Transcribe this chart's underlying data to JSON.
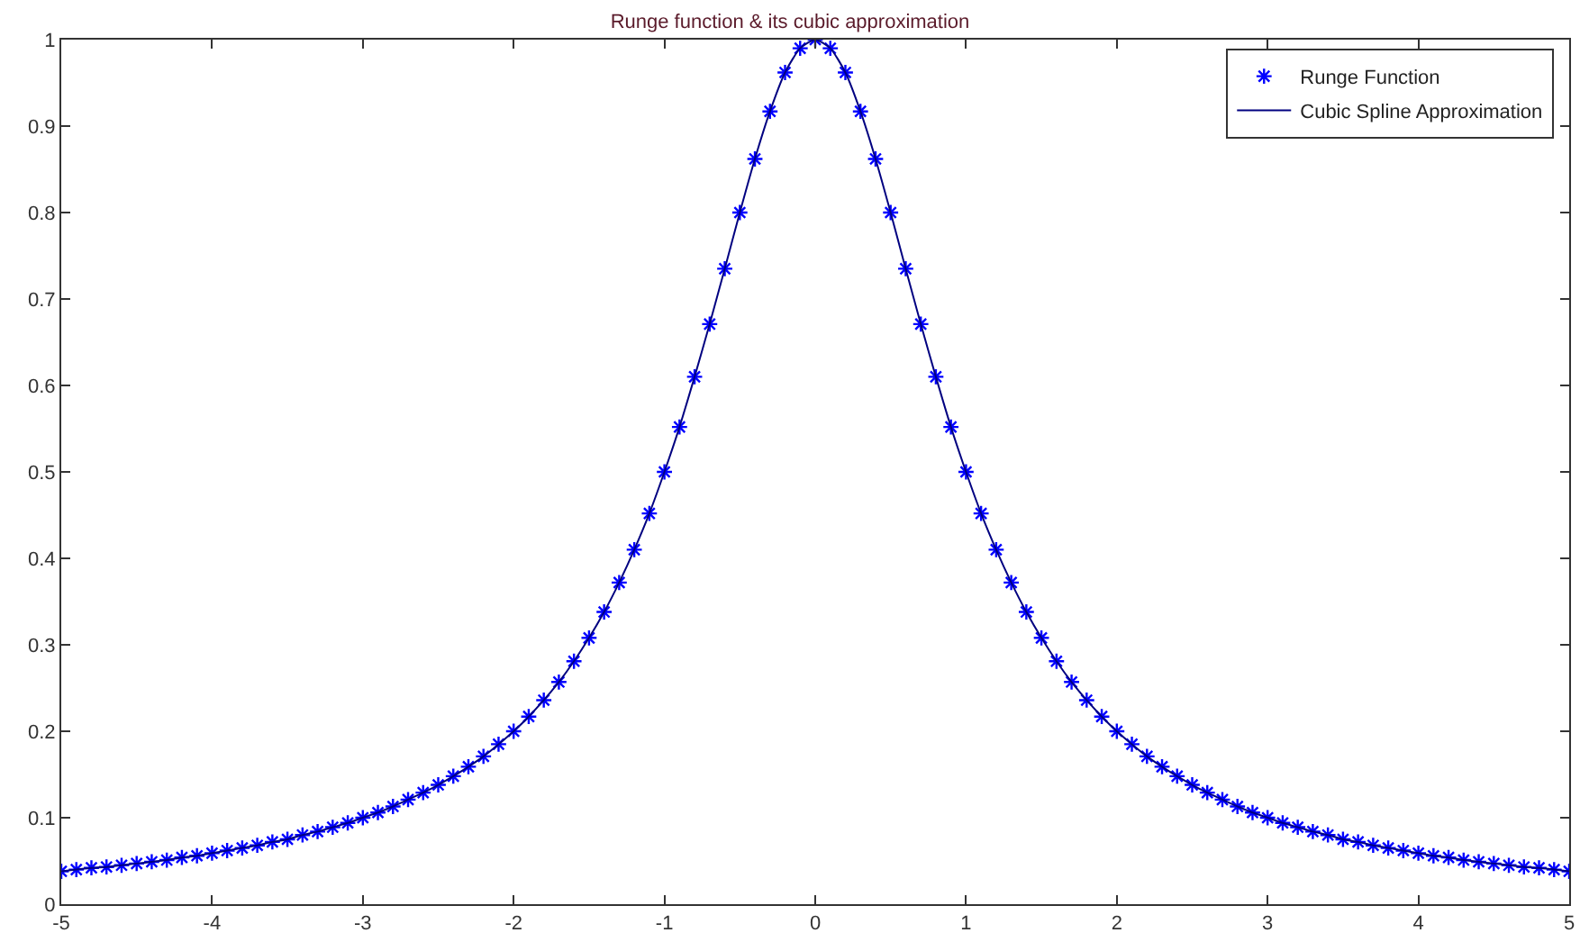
{
  "chart_data": {
    "type": "line",
    "title": "Runge function & its cubic approximation",
    "x": [
      -5,
      -4.9,
      -4.8,
      -4.7,
      -4.6,
      -4.5,
      -4.4,
      -4.3,
      -4.2,
      -4.1,
      -4,
      -3.9,
      -3.8,
      -3.7,
      -3.6,
      -3.5,
      -3.4,
      -3.3,
      -3.2,
      -3.1,
      -3,
      -2.9,
      -2.8,
      -2.7,
      -2.6,
      -2.5,
      -2.4,
      -2.3,
      -2.2,
      -2.1,
      -2,
      -1.9,
      -1.8,
      -1.7,
      -1.6,
      -1.5,
      -1.4,
      -1.3,
      -1.2,
      -1.1,
      -1,
      -0.9,
      -0.8,
      -0.7,
      -0.6,
      -0.5,
      -0.4,
      -0.3,
      -0.2,
      -0.1,
      0,
      0.1,
      0.2,
      0.3,
      0.4,
      0.5,
      0.6,
      0.7,
      0.8,
      0.9,
      1,
      1.1,
      1.2,
      1.3,
      1.4,
      1.5,
      1.6,
      1.7,
      1.8,
      1.9,
      2,
      2.1,
      2.2,
      2.3,
      2.4,
      2.5,
      2.6,
      2.7,
      2.8,
      2.9,
      3,
      3.1,
      3.2,
      3.3,
      3.4,
      3.5,
      3.6,
      3.7,
      3.8,
      3.9,
      4,
      4.1,
      4.2,
      4.3,
      4.4,
      4.5,
      4.6,
      4.7,
      4.8,
      4.9,
      5
    ],
    "series": [
      {
        "name": "Runge Function",
        "type": "scatter",
        "marker": "cross",
        "color": "#0000ff",
        "values": [
          0.038,
          0.04,
          0.042,
          0.043,
          0.045,
          0.047,
          0.049,
          0.051,
          0.054,
          0.056,
          0.059,
          0.062,
          0.065,
          0.068,
          0.072,
          0.075,
          0.08,
          0.084,
          0.089,
          0.094,
          0.1,
          0.106,
          0.113,
          0.121,
          0.129,
          0.138,
          0.148,
          0.159,
          0.171,
          0.185,
          0.2,
          0.217,
          0.236,
          0.257,
          0.281,
          0.308,
          0.338,
          0.372,
          0.41,
          0.452,
          0.5,
          0.552,
          0.61,
          0.671,
          0.735,
          0.8,
          0.862,
          0.917,
          0.962,
          0.99,
          1,
          0.99,
          0.962,
          0.917,
          0.862,
          0.8,
          0.735,
          0.671,
          0.61,
          0.552,
          0.5,
          0.452,
          0.41,
          0.372,
          0.338,
          0.308,
          0.281,
          0.257,
          0.236,
          0.217,
          0.2,
          0.185,
          0.171,
          0.159,
          0.148,
          0.138,
          0.129,
          0.121,
          0.113,
          0.106,
          0.1,
          0.094,
          0.089,
          0.084,
          0.08,
          0.075,
          0.072,
          0.068,
          0.065,
          0.062,
          0.059,
          0.056,
          0.054,
          0.051,
          0.049,
          0.047,
          0.045,
          0.043,
          0.042,
          0.04,
          0.038
        ]
      },
      {
        "name": "Cubic Spline Approximation",
        "line_style": "solid",
        "color": "#000080",
        "values": [
          0.038,
          0.04,
          0.042,
          0.043,
          0.045,
          0.047,
          0.049,
          0.051,
          0.054,
          0.056,
          0.059,
          0.062,
          0.065,
          0.068,
          0.072,
          0.075,
          0.08,
          0.084,
          0.089,
          0.094,
          0.1,
          0.106,
          0.113,
          0.121,
          0.129,
          0.138,
          0.148,
          0.159,
          0.171,
          0.185,
          0.2,
          0.217,
          0.236,
          0.257,
          0.281,
          0.308,
          0.338,
          0.372,
          0.41,
          0.452,
          0.5,
          0.552,
          0.61,
          0.671,
          0.735,
          0.8,
          0.862,
          0.917,
          0.962,
          0.99,
          1,
          0.99,
          0.962,
          0.917,
          0.862,
          0.8,
          0.735,
          0.671,
          0.61,
          0.552,
          0.5,
          0.452,
          0.41,
          0.372,
          0.338,
          0.308,
          0.281,
          0.257,
          0.236,
          0.217,
          0.2,
          0.185,
          0.171,
          0.159,
          0.148,
          0.138,
          0.129,
          0.121,
          0.113,
          0.106,
          0.1,
          0.094,
          0.089,
          0.084,
          0.08,
          0.075,
          0.072,
          0.068,
          0.065,
          0.062,
          0.059,
          0.056,
          0.054,
          0.051,
          0.049,
          0.047,
          0.045,
          0.043,
          0.042,
          0.04,
          0.038
        ]
      }
    ],
    "xlim": [
      -5,
      5
    ],
    "xticks": [
      -5,
      -4,
      -3,
      -2,
      -1,
      0,
      1,
      2,
      3,
      4,
      5
    ],
    "ylim": [
      0,
      1
    ],
    "yticks": [
      0,
      0.1,
      0.2,
      0.3,
      0.4,
      0.5,
      0.6,
      0.7,
      0.8,
      0.9,
      1
    ],
    "grid": false,
    "legend": "top right"
  }
}
